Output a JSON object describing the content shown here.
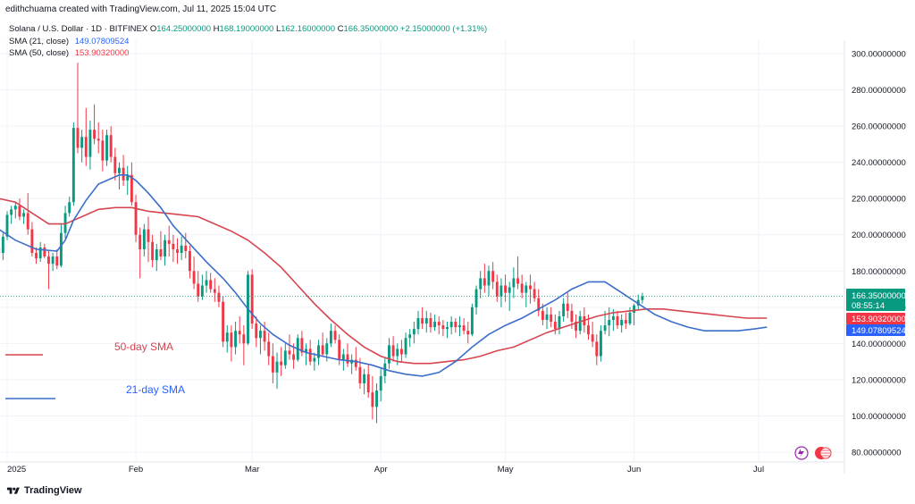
{
  "header": {
    "line": "edithchuama created with TradingView.com, Jul 11, 2025 15:04 UTC"
  },
  "legend": {
    "symbol": "Solana / U.S. Dollar · 1D · BITFINEX",
    "ohlc": {
      "o_label": "O",
      "o": "164.25000000",
      "h_label": "H",
      "h": "168.19000000",
      "l_label": "L",
      "l": "162.16000000",
      "c_label": "C",
      "c": "166.35000000",
      "change": "+2.15000000 (+1.31%)"
    },
    "sma21": {
      "label": "SMA (21, close)",
      "value": "149.07809524"
    },
    "sma50": {
      "label": "SMA (50, close)",
      "value": "153.90320000"
    }
  },
  "annotations": {
    "sma50_text": "50-day SMA",
    "sma21_text": "21-day SMA"
  },
  "price_tags": {
    "last_price": "166.35000000",
    "countdown": "08:55:14",
    "sma50": "153.90320000",
    "sma21": "149.07809524"
  },
  "footer": {
    "brand": "TradingView"
  },
  "colors": {
    "up": "#089981",
    "down": "#f23645",
    "sma21": "#2962ff",
    "sma50": "#f23645",
    "sma21_line": "#3a6ec9",
    "sma50_line": "#d6454f",
    "label_blue": "#2962ff"
  },
  "chart_data": {
    "type": "candlestick",
    "ylim": [
      80,
      305
    ],
    "y_ticks": [
      {
        "v": 300,
        "label": "300.00000000"
      },
      {
        "v": 280,
        "label": "280.00000000"
      },
      {
        "v": 260,
        "label": "260.00000000"
      },
      {
        "v": 240,
        "label": "240.00000000"
      },
      {
        "v": 220,
        "label": "220.00000000"
      },
      {
        "v": 200,
        "label": "200.00000000"
      },
      {
        "v": 180,
        "label": "180.00000000"
      },
      {
        "v": 160,
        "label": "160.00000000"
      },
      {
        "v": 140,
        "label": "140.00000000"
      },
      {
        "v": 120,
        "label": "120.00000000"
      },
      {
        "v": 100,
        "label": "100.00000000"
      },
      {
        "v": 80,
        "label": "80.00000000"
      }
    ],
    "x_ticks": [
      {
        "day": 0,
        "label": "2025"
      },
      {
        "day": 31,
        "label": "Feb"
      },
      {
        "day": 59,
        "label": "Mar"
      },
      {
        "day": 90,
        "label": "Apr"
      },
      {
        "day": 120,
        "label": "May"
      },
      {
        "day": 151,
        "label": "Jun"
      },
      {
        "day": 181,
        "label": "Jul"
      }
    ],
    "first_day": -2,
    "ohlc": [
      [
        193,
        197,
        188,
        190
      ],
      [
        190,
        201,
        186,
        199
      ],
      [
        199,
        213,
        197,
        211
      ],
      [
        211,
        216,
        206,
        214
      ],
      [
        214,
        218,
        209,
        216
      ],
      [
        216,
        220,
        208,
        210
      ],
      [
        210,
        214,
        206,
        212
      ],
      [
        212,
        223,
        200,
        203
      ],
      [
        203,
        207,
        188,
        190
      ],
      [
        190,
        193,
        184,
        187
      ],
      [
        187,
        196,
        185,
        193
      ],
      [
        193,
        195,
        187,
        188
      ],
      [
        188,
        191,
        170,
        184
      ],
      [
        184,
        190,
        180,
        188
      ],
      [
        188,
        192,
        181,
        183
      ],
      [
        183,
        206,
        182,
        201
      ],
      [
        201,
        216,
        198,
        212
      ],
      [
        212,
        221,
        210,
        218
      ],
      [
        218,
        262,
        216,
        259
      ],
      [
        259,
        295,
        245,
        248
      ],
      [
        248,
        258,
        240,
        254
      ],
      [
        254,
        270,
        238,
        243
      ],
      [
        243,
        263,
        236,
        258
      ],
      [
        258,
        272,
        250,
        253
      ],
      [
        253,
        262,
        245,
        252
      ],
      [
        252,
        258,
        235,
        241
      ],
      [
        241,
        258,
        238,
        255
      ],
      [
        255,
        260,
        240,
        243
      ],
      [
        243,
        248,
        230,
        234
      ],
      [
        234,
        240,
        225,
        237
      ],
      [
        237,
        244,
        227,
        230
      ],
      [
        230,
        238,
        222,
        233
      ],
      [
        233,
        240,
        216,
        218
      ],
      [
        218,
        222,
        196,
        200
      ],
      [
        200,
        204,
        176,
        192
      ],
      [
        192,
        206,
        188,
        203
      ],
      [
        203,
        210,
        185,
        196
      ],
      [
        196,
        200,
        182,
        186
      ],
      [
        186,
        195,
        180,
        192
      ],
      [
        192,
        202,
        186,
        188
      ],
      [
        188,
        200,
        183,
        197
      ],
      [
        197,
        205,
        188,
        195
      ],
      [
        195,
        200,
        185,
        192
      ],
      [
        192,
        198,
        184,
        190
      ],
      [
        190,
        199,
        186,
        194
      ],
      [
        194,
        201,
        187,
        191
      ],
      [
        191,
        194,
        176,
        180
      ],
      [
        180,
        188,
        170,
        173
      ],
      [
        173,
        180,
        163,
        166
      ],
      [
        166,
        178,
        164,
        172
      ],
      [
        172,
        180,
        168,
        175
      ],
      [
        175,
        179,
        168,
        170
      ],
      [
        170,
        176,
        163,
        168
      ],
      [
        168,
        172,
        160,
        163
      ],
      [
        163,
        166,
        138,
        141
      ],
      [
        141,
        150,
        135,
        146
      ],
      [
        146,
        150,
        130,
        138
      ],
      [
        138,
        152,
        134,
        147
      ],
      [
        147,
        155,
        140,
        145
      ],
      [
        145,
        150,
        128,
        140
      ],
      [
        140,
        180,
        139,
        178
      ],
      [
        178,
        181,
        148,
        151
      ],
      [
        151,
        155,
        138,
        143
      ],
      [
        143,
        150,
        134,
        147
      ],
      [
        147,
        152,
        136,
        141
      ],
      [
        141,
        146,
        128,
        133
      ],
      [
        133,
        140,
        118,
        124
      ],
      [
        124,
        135,
        115,
        130
      ],
      [
        130,
        138,
        122,
        128
      ],
      [
        128,
        140,
        126,
        136
      ],
      [
        136,
        145,
        131,
        134
      ],
      [
        134,
        140,
        126,
        131
      ],
      [
        131,
        145,
        130,
        143
      ],
      [
        143,
        147,
        133,
        135
      ],
      [
        135,
        140,
        128,
        137
      ],
      [
        137,
        142,
        128,
        130
      ],
      [
        130,
        135,
        125,
        132
      ],
      [
        132,
        142,
        128,
        139
      ],
      [
        139,
        146,
        133,
        134
      ],
      [
        134,
        143,
        130,
        140
      ],
      [
        140,
        151,
        138,
        147
      ],
      [
        147,
        150,
        140,
        142
      ],
      [
        142,
        145,
        128,
        131
      ],
      [
        131,
        137,
        125,
        134
      ],
      [
        134,
        140,
        127,
        129
      ],
      [
        129,
        134,
        123,
        131
      ],
      [
        131,
        138,
        125,
        127
      ],
      [
        127,
        132,
        115,
        118
      ],
      [
        118,
        126,
        112,
        123
      ],
      [
        123,
        128,
        110,
        113
      ],
      [
        113,
        122,
        98,
        105
      ],
      [
        105,
        118,
        96,
        114
      ],
      [
        114,
        126,
        108,
        122
      ],
      [
        122,
        132,
        118,
        129
      ],
      [
        129,
        143,
        126,
        139
      ],
      [
        139,
        144,
        130,
        133
      ],
      [
        133,
        140,
        128,
        137
      ],
      [
        137,
        142,
        130,
        134
      ],
      [
        134,
        146,
        132,
        143
      ],
      [
        143,
        148,
        138,
        145
      ],
      [
        145,
        152,
        140,
        148
      ],
      [
        148,
        158,
        145,
        154
      ],
      [
        154,
        160,
        148,
        151
      ],
      [
        151,
        158,
        146,
        154
      ],
      [
        154,
        157,
        146,
        149
      ],
      [
        149,
        156,
        147,
        152
      ],
      [
        152,
        155,
        145,
        150
      ],
      [
        150,
        153,
        144,
        148
      ],
      [
        148,
        152,
        143,
        149
      ],
      [
        149,
        155,
        145,
        152
      ],
      [
        152,
        154,
        146,
        149
      ],
      [
        149,
        155,
        144,
        150
      ],
      [
        150,
        154,
        145,
        147
      ],
      [
        147,
        152,
        140,
        145
      ],
      [
        145,
        162,
        144,
        160
      ],
      [
        160,
        172,
        156,
        170
      ],
      [
        170,
        180,
        165,
        176
      ],
      [
        176,
        184,
        168,
        172
      ],
      [
        172,
        183,
        166,
        180
      ],
      [
        180,
        185,
        170,
        174
      ],
      [
        174,
        178,
        163,
        166
      ],
      [
        166,
        176,
        160,
        172
      ],
      [
        172,
        178,
        163,
        168
      ],
      [
        168,
        174,
        158,
        171
      ],
      [
        171,
        182,
        165,
        176
      ],
      [
        176,
        188,
        170,
        173
      ],
      [
        173,
        178,
        165,
        168
      ],
      [
        168,
        174,
        160,
        172
      ],
      [
        172,
        178,
        162,
        170
      ],
      [
        170,
        174,
        163,
        165
      ],
      [
        165,
        170,
        155,
        158
      ],
      [
        158,
        162,
        150,
        153
      ],
      [
        153,
        160,
        148,
        156
      ],
      [
        156,
        160,
        149,
        152
      ],
      [
        152,
        156,
        145,
        148
      ],
      [
        148,
        158,
        145,
        155
      ],
      [
        155,
        165,
        152,
        162
      ],
      [
        162,
        168,
        154,
        158
      ],
      [
        158,
        162,
        148,
        152
      ],
      [
        152,
        156,
        143,
        147
      ],
      [
        147,
        158,
        145,
        155
      ],
      [
        155,
        160,
        146,
        150
      ],
      [
        150,
        156,
        142,
        145
      ],
      [
        145,
        152,
        138,
        141
      ],
      [
        141,
        145,
        128,
        133
      ],
      [
        133,
        150,
        130,
        147
      ],
      [
        147,
        158,
        145,
        150
      ],
      [
        150,
        160,
        144,
        153
      ],
      [
        153,
        159,
        147,
        155
      ],
      [
        155,
        158,
        148,
        150
      ],
      [
        150,
        156,
        146,
        153
      ],
      [
        153,
        157,
        148,
        151
      ],
      [
        151,
        160,
        150,
        157
      ],
      [
        157,
        162,
        150,
        161
      ],
      [
        161,
        167,
        159,
        164
      ],
      [
        164,
        168,
        162,
        166
      ]
    ],
    "sma21": [
      [
        -2,
        203
      ],
      [
        2,
        197
      ],
      [
        7,
        192
      ],
      [
        12,
        191
      ],
      [
        14,
        197
      ],
      [
        16,
        208
      ],
      [
        19,
        219
      ],
      [
        22,
        228
      ],
      [
        25,
        231
      ],
      [
        27,
        233
      ],
      [
        29,
        233
      ],
      [
        31,
        230
      ],
      [
        34,
        223
      ],
      [
        37,
        215
      ],
      [
        40,
        205
      ],
      [
        44,
        195
      ],
      [
        48,
        185
      ],
      [
        52,
        176
      ],
      [
        55,
        168
      ],
      [
        58,
        159
      ],
      [
        61,
        151
      ],
      [
        64,
        145
      ],
      [
        68,
        139
      ],
      [
        72,
        135
      ],
      [
        76,
        133
      ],
      [
        80,
        131
      ],
      [
        84,
        130
      ],
      [
        88,
        128
      ],
      [
        92,
        125
      ],
      [
        96,
        123
      ],
      [
        100,
        122
      ],
      [
        104,
        124
      ],
      [
        108,
        130
      ],
      [
        112,
        138
      ],
      [
        116,
        145
      ],
      [
        120,
        150
      ],
      [
        124,
        154
      ],
      [
        128,
        159
      ],
      [
        132,
        164
      ],
      [
        136,
        170
      ],
      [
        140,
        174
      ],
      [
        144,
        174
      ],
      [
        148,
        168
      ],
      [
        152,
        162
      ],
      [
        156,
        156
      ],
      [
        160,
        152
      ],
      [
        164,
        149
      ],
      [
        168,
        147
      ],
      [
        172,
        147
      ],
      [
        176,
        147
      ],
      [
        180,
        148
      ],
      [
        183,
        149
      ]
    ],
    "sma50": [
      [
        -2,
        220
      ],
      [
        2,
        218
      ],
      [
        6,
        212
      ],
      [
        10,
        206
      ],
      [
        14,
        206
      ],
      [
        18,
        210
      ],
      [
        22,
        214
      ],
      [
        26,
        215
      ],
      [
        30,
        215
      ],
      [
        34,
        213
      ],
      [
        38,
        212
      ],
      [
        42,
        211
      ],
      [
        46,
        210
      ],
      [
        50,
        206
      ],
      [
        54,
        202
      ],
      [
        58,
        197
      ],
      [
        62,
        190
      ],
      [
        66,
        182
      ],
      [
        70,
        172
      ],
      [
        74,
        162
      ],
      [
        78,
        153
      ],
      [
        82,
        145
      ],
      [
        86,
        138
      ],
      [
        90,
        133
      ],
      [
        94,
        130
      ],
      [
        98,
        129
      ],
      [
        102,
        129
      ],
      [
        106,
        130
      ],
      [
        110,
        131
      ],
      [
        114,
        133
      ],
      [
        118,
        136
      ],
      [
        122,
        138
      ],
      [
        126,
        142
      ],
      [
        130,
        146
      ],
      [
        134,
        149
      ],
      [
        138,
        152
      ],
      [
        142,
        155
      ],
      [
        146,
        157
      ],
      [
        150,
        158
      ],
      [
        154,
        159
      ],
      [
        158,
        159
      ],
      [
        162,
        158
      ],
      [
        166,
        157
      ],
      [
        170,
        156
      ],
      [
        174,
        155
      ],
      [
        178,
        154
      ],
      [
        182,
        154
      ],
      [
        183,
        154
      ]
    ]
  }
}
